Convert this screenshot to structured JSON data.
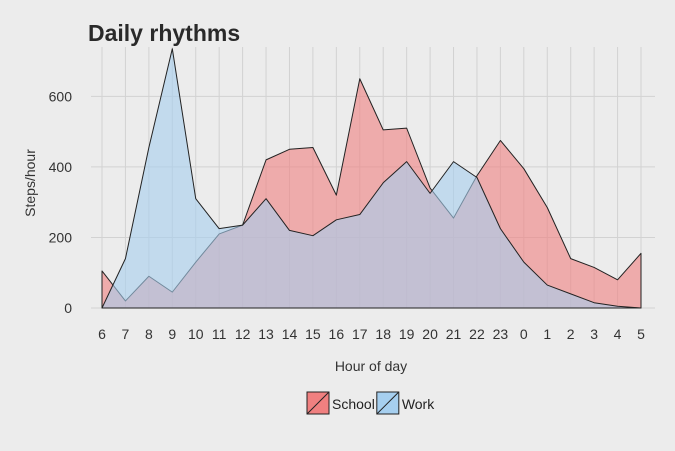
{
  "chart_data": {
    "type": "area",
    "title": "Daily rhythms",
    "xlabel": "Hour of day",
    "ylabel": "Steps/hour",
    "categories": [
      "6",
      "7",
      "8",
      "9",
      "10",
      "11",
      "12",
      "13",
      "14",
      "15",
      "16",
      "17",
      "18",
      "19",
      "20",
      "21",
      "22",
      "23",
      "0",
      "1",
      "2",
      "3",
      "4",
      "5"
    ],
    "ylim": [
      0,
      740
    ],
    "yticks": [
      0,
      200,
      400,
      600
    ],
    "grid": true,
    "legend_position": "bottom",
    "series": [
      {
        "name": "School",
        "color": "#f08080",
        "values": [
          105,
          20,
          90,
          45,
          130,
          210,
          235,
          420,
          450,
          455,
          320,
          650,
          505,
          510,
          340,
          255,
          375,
          475,
          395,
          285,
          140,
          115,
          80,
          155
        ]
      },
      {
        "name": "Work",
        "color": "#a6cfef",
        "values": [
          0,
          140,
          455,
          735,
          310,
          225,
          235,
          310,
          220,
          205,
          250,
          265,
          355,
          415,
          325,
          415,
          370,
          225,
          130,
          65,
          40,
          15,
          5,
          0
        ]
      }
    ]
  }
}
